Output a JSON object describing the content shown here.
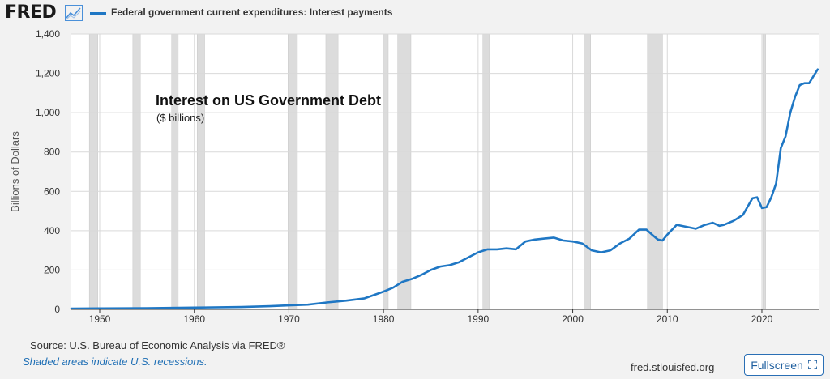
{
  "header": {
    "logo_text": "FRED",
    "legend_label": "Federal government current expenditures: Interest payments"
  },
  "footer": {
    "source": "Source: U.S. Bureau of Economic Analysis via FRED®",
    "note": "Shaded areas indicate U.S. recessions.",
    "url": "fred.stlouisfed.org",
    "fullscreen_label": "Fullscreen"
  },
  "colors": {
    "series": "#1f77c4",
    "recession": "#dcdcdc",
    "grid": "#d9d9d9"
  },
  "chart_data": {
    "type": "line",
    "title": "Interest on US Government Debt",
    "subtitle": "($ billions)",
    "ylabel": "Billions of Dollars",
    "xlabel": "",
    "xlim": [
      1947,
      2026
    ],
    "ylim": [
      0,
      1400
    ],
    "yticks": [
      0,
      200,
      400,
      600,
      800,
      1000,
      1200,
      1400
    ],
    "ytick_labels": [
      "0",
      "200",
      "400",
      "600",
      "800",
      "1,000",
      "1,200",
      "1,400"
    ],
    "xticks": [
      1950,
      1960,
      1970,
      1980,
      1990,
      2000,
      2010,
      2020
    ],
    "xtick_labels": [
      "1950",
      "1960",
      "1970",
      "1980",
      "1990",
      "2000",
      "2010",
      "2020"
    ],
    "grid": true,
    "recessions": [
      [
        1948.9,
        1949.8
      ],
      [
        1953.5,
        1954.3
      ],
      [
        1957.6,
        1958.3
      ],
      [
        1960.3,
        1961.1
      ],
      [
        1969.9,
        1970.9
      ],
      [
        1973.9,
        1975.2
      ],
      [
        1980.0,
        1980.5
      ],
      [
        1981.5,
        1982.9
      ],
      [
        1990.5,
        1991.2
      ],
      [
        2001.2,
        2001.9
      ],
      [
        2007.9,
        2009.5
      ],
      [
        2020.1,
        2020.4
      ]
    ],
    "series": [
      {
        "name": "Federal government current expenditures: Interest payments",
        "x": [
          1947,
          1950,
          1955,
          1960,
          1965,
          1968,
          1970,
          1972,
          1974,
          1976,
          1978,
          1980,
          1981,
          1982,
          1983,
          1984,
          1985,
          1986,
          1987,
          1988,
          1989,
          1990,
          1991,
          1992,
          1993,
          1994,
          1995,
          1996,
          1997,
          1998,
          1999,
          2000,
          2001,
          2002,
          2003,
          2004,
          2005,
          2006,
          2007,
          2007.8,
          2008.5,
          2009,
          2009.5,
          2010,
          2011,
          2012,
          2013,
          2014,
          2014.8,
          2015.5,
          2016,
          2017,
          2018,
          2019,
          2019.5,
          2020,
          2020.5,
          2021,
          2021.5,
          2022,
          2022.5,
          2023,
          2023.5,
          2024,
          2024.5,
          2025,
          2025.5,
          2025.9
        ],
        "values": [
          4,
          5,
          6,
          9,
          12,
          16,
          20,
          24,
          35,
          44,
          56,
          90,
          110,
          140,
          155,
          175,
          200,
          218,
          225,
          240,
          265,
          290,
          305,
          305,
          310,
          305,
          345,
          355,
          360,
          365,
          350,
          345,
          335,
          300,
          290,
          300,
          335,
          360,
          405,
          405,
          375,
          355,
          350,
          380,
          430,
          420,
          410,
          430,
          440,
          425,
          430,
          450,
          480,
          565,
          570,
          515,
          520,
          570,
          640,
          820,
          880,
          1000,
          1080,
          1140,
          1150,
          1150,
          1190,
          1220
        ]
      }
    ]
  }
}
